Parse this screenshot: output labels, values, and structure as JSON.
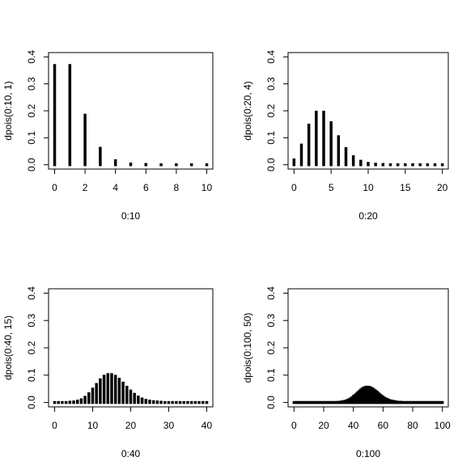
{
  "chart_data": [
    {
      "type": "stem",
      "xlabel": "0:10",
      "ylabel": "dpois(0:10, 1)",
      "color": "#000000",
      "x": [
        0,
        1,
        2,
        3,
        4,
        5,
        6,
        7,
        8,
        9,
        10
      ],
      "values": [
        0.368,
        0.368,
        0.184,
        0.061,
        0.015,
        0.003,
        0.001,
        0,
        0,
        0,
        0
      ],
      "xlim": [
        -0.4,
        10.4
      ],
      "xticks": [
        0,
        2,
        4,
        6,
        8,
        10
      ],
      "ylim": [
        -0.016,
        0.416
      ],
      "yticks": [
        {
          "value": 0,
          "label": "0.0"
        },
        0.1,
        0.2,
        0.3,
        0.4
      ]
    },
    {
      "type": "stem",
      "xlabel": "0:20",
      "ylabel": "dpois(0:20, 4)",
      "color": "#000000",
      "x": [
        0,
        1,
        2,
        3,
        4,
        5,
        6,
        7,
        8,
        9,
        10,
        11,
        12,
        13,
        14,
        15,
        16,
        17,
        18,
        19,
        20
      ],
      "values": [
        0.018,
        0.073,
        0.147,
        0.195,
        0.195,
        0.156,
        0.104,
        0.06,
        0.03,
        0.013,
        0.005,
        0.002,
        0.001,
        0,
        0,
        0,
        0,
        0,
        0,
        0,
        0
      ],
      "xlim": [
        -0.8,
        20.8
      ],
      "xticks": [
        0,
        5,
        10,
        15,
        20
      ],
      "ylim": [
        -0.016,
        0.416
      ],
      "yticks": [
        {
          "value": 0,
          "label": "0.0"
        },
        0.1,
        0.2,
        0.3,
        0.4
      ]
    },
    {
      "type": "stem",
      "xlabel": "0:40",
      "ylabel": "dpois(0:40, 15)",
      "color": "#000000",
      "x": [
        0,
        1,
        2,
        3,
        4,
        5,
        6,
        7,
        8,
        9,
        10,
        11,
        12,
        13,
        14,
        15,
        16,
        17,
        18,
        19,
        20,
        21,
        22,
        23,
        24,
        25,
        26,
        27,
        28,
        29,
        30,
        31,
        32,
        33,
        34,
        35,
        36,
        37,
        38,
        39,
        40
      ],
      "values": [
        0,
        0,
        0,
        0,
        0.001,
        0.002,
        0.005,
        0.01,
        0.019,
        0.032,
        0.049,
        0.066,
        0.083,
        0.096,
        0.102,
        0.102,
        0.096,
        0.085,
        0.071,
        0.056,
        0.042,
        0.03,
        0.02,
        0.013,
        0.008,
        0.005,
        0.003,
        0.002,
        0.001,
        0,
        0,
        0,
        0,
        0,
        0,
        0,
        0,
        0,
        0,
        0,
        0
      ],
      "xlim": [
        -1.6,
        41.6
      ],
      "xticks": [
        0,
        10,
        20,
        30,
        40
      ],
      "ylim": [
        -0.016,
        0.416
      ],
      "yticks": [
        {
          "value": 0,
          "label": "0.0"
        },
        0.1,
        0.2,
        0.3,
        0.4
      ]
    },
    {
      "type": "stem",
      "xlabel": "0:100",
      "ylabel": "dpois(0:100, 50)",
      "color": "#000000",
      "x": [
        0,
        1,
        2,
        3,
        4,
        5,
        6,
        7,
        8,
        9,
        10,
        11,
        12,
        13,
        14,
        15,
        16,
        17,
        18,
        19,
        20,
        21,
        22,
        23,
        24,
        25,
        26,
        27,
        28,
        29,
        30,
        31,
        32,
        33,
        34,
        35,
        36,
        37,
        38,
        39,
        40,
        41,
        42,
        43,
        44,
        45,
        46,
        47,
        48,
        49,
        50,
        51,
        52,
        53,
        54,
        55,
        56,
        57,
        58,
        59,
        60,
        61,
        62,
        63,
        64,
        65,
        66,
        67,
        68,
        69,
        70,
        71,
        72,
        73,
        74,
        75,
        76,
        77,
        78,
        79,
        80,
        81,
        82,
        83,
        84,
        85,
        86,
        87,
        88,
        89,
        90,
        91,
        92,
        93,
        94,
        95,
        96,
        97,
        98,
        99,
        100
      ],
      "values": [
        0,
        0,
        0,
        0,
        0,
        0,
        0,
        0,
        0,
        0,
        0,
        0,
        0,
        0,
        0,
        0,
        0,
        0,
        0,
        0,
        0,
        0,
        0,
        0,
        0,
        0,
        0,
        0,
        0,
        0,
        0.001,
        0.001,
        0.002,
        0.003,
        0.004,
        0.005,
        0.008,
        0.01,
        0.013,
        0.017,
        0.022,
        0.026,
        0.031,
        0.036,
        0.041,
        0.046,
        0.05,
        0.053,
        0.055,
        0.056,
        0.056,
        0.055,
        0.053,
        0.05,
        0.046,
        0.042,
        0.038,
        0.033,
        0.028,
        0.024,
        0.02,
        0.016,
        0.013,
        0.011,
        0.008,
        0.006,
        0.005,
        0.004,
        0.003,
        0.002,
        0.001,
        0.001,
        0.001,
        0,
        0,
        0,
        0,
        0,
        0,
        0,
        0,
        0,
        0,
        0,
        0,
        0,
        0,
        0,
        0,
        0,
        0,
        0,
        0,
        0,
        0,
        0,
        0,
        0,
        0,
        0,
        0
      ],
      "xlim": [
        -4,
        104
      ],
      "xticks": [
        0,
        20,
        40,
        60,
        80,
        100
      ],
      "ylim": [
        -0.016,
        0.416
      ],
      "yticks": [
        {
          "value": 0,
          "label": "0.0"
        },
        0.1,
        0.2,
        0.3,
        0.4
      ]
    }
  ]
}
